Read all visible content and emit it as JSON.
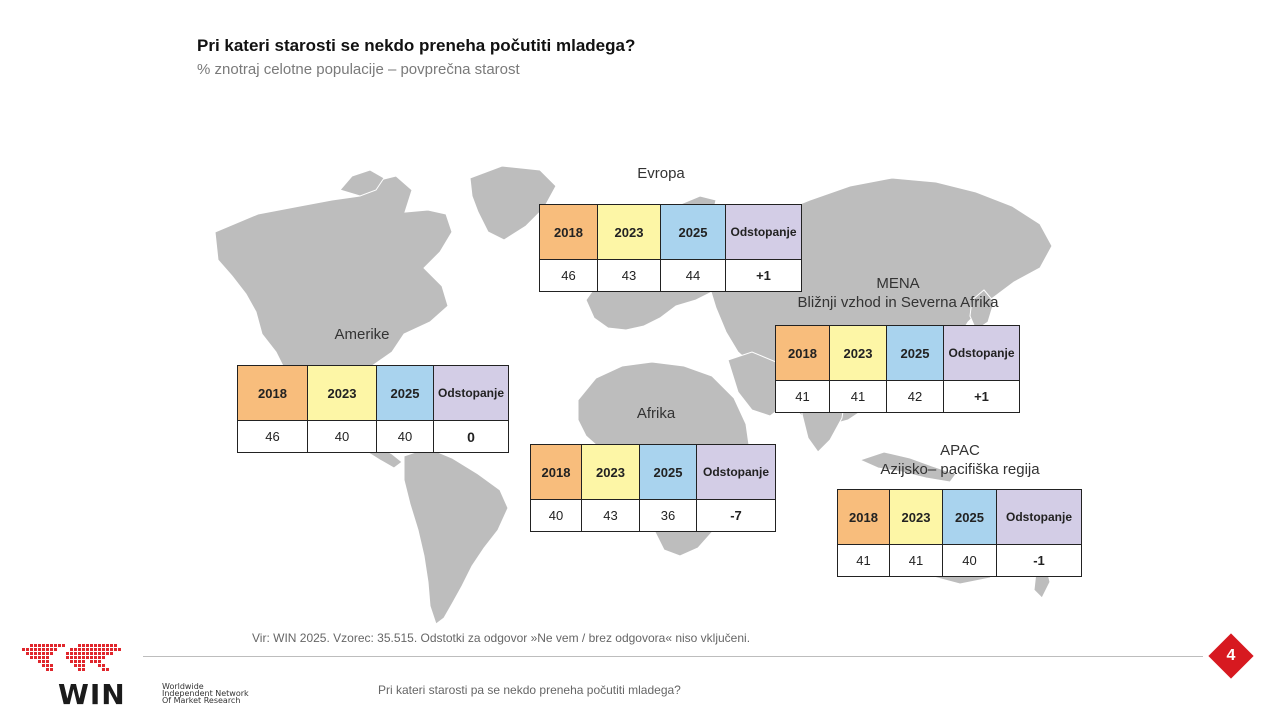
{
  "header": {
    "title": "Pri kateri starosti se nekdo preneha počutiti mladega?",
    "subtitle": "% znotraj celotne populacije – povprečna starost"
  },
  "columns": [
    "2018",
    "2023",
    "2025",
    "Odstopanje"
  ],
  "colors": {
    "c2018": "#f8bd7c",
    "c2023": "#fdf6a6",
    "c2025": "#a9d3ee",
    "deviation": "#d3cde6",
    "map": "#bdbdbd",
    "accent": "#d71920"
  },
  "regions": {
    "europe": {
      "label": "Evropa",
      "values": [
        "46",
        "43",
        "44",
        "+1"
      ]
    },
    "americas": {
      "label": "Amerike",
      "values": [
        "46",
        "40",
        "40",
        "0"
      ]
    },
    "mena": {
      "label": "MENA",
      "sublabel": "Bližnji vzhod in Severna Afrika",
      "values": [
        "41",
        "41",
        "42",
        "+1"
      ]
    },
    "africa": {
      "label": "Afrika",
      "values": [
        "40",
        "43",
        "36",
        "-7"
      ]
    },
    "apac": {
      "label": "APAC",
      "sublabel": "Azijsko– pacifiška regija",
      "values": [
        "41",
        "41",
        "40",
        "-1"
      ]
    }
  },
  "footer": {
    "source": "Vir: WIN 2025. Vzorec: 35.515. Odstotki za odgovor »Ne vem / brez odgovora« niso vključeni.",
    "question": "Pri kateri starosti pa se nekdo preneha počutiti mladega?",
    "page_number": "4"
  },
  "logo": {
    "name": "WIN",
    "tagline_1": "Worldwide",
    "tagline_2": "Independent Network",
    "tagline_3": "Of Market Research"
  }
}
